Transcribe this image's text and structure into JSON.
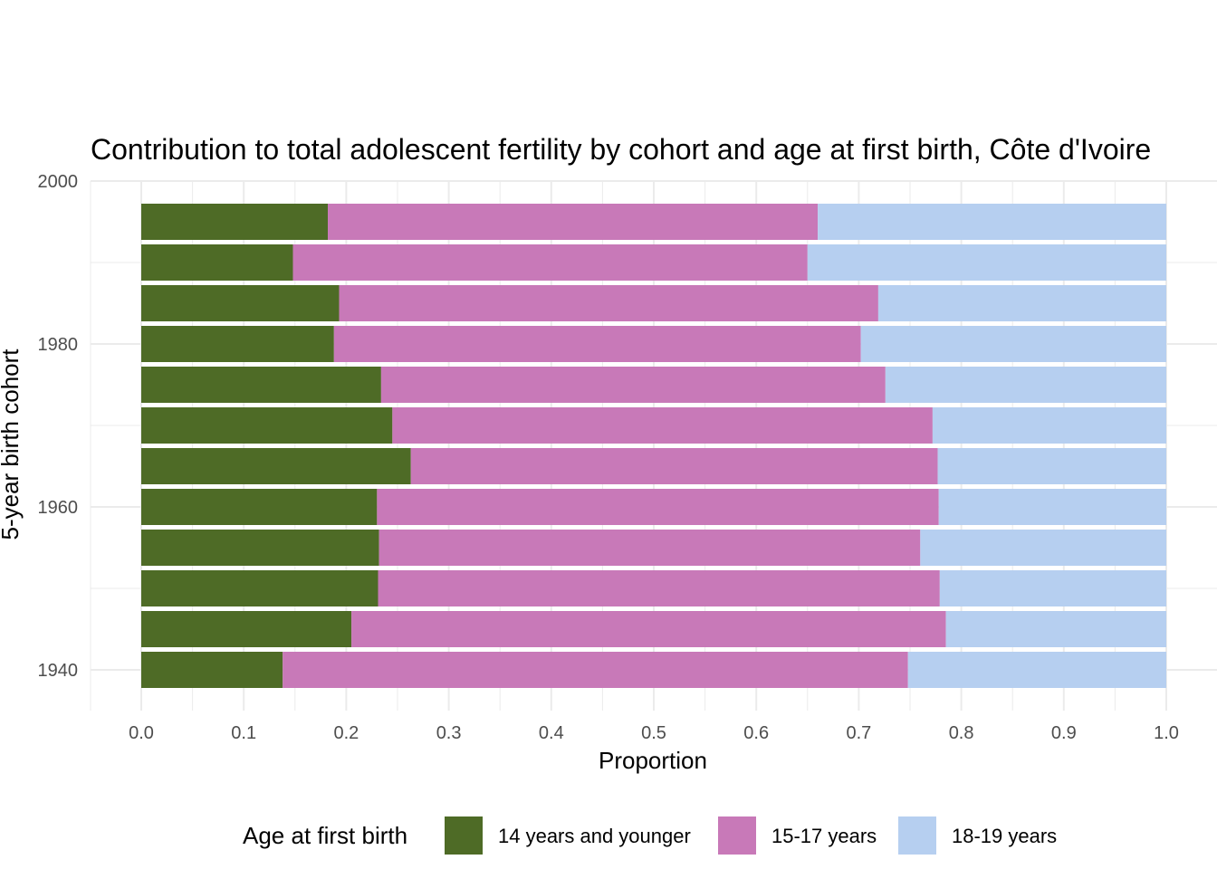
{
  "chart_data": {
    "type": "bar",
    "orientation": "horizontal",
    "stacked": true,
    "title": "Contribution to total adolescent fertility by cohort and age at first birth,  Côte d'Ivoire",
    "xlabel": "Proportion",
    "ylabel": "5-year birth cohort",
    "xlim": [
      0,
      1
    ],
    "ylim": [
      1940,
      2000
    ],
    "x_ticks": [
      "0.0",
      "0.1",
      "0.2",
      "0.3",
      "0.4",
      "0.5",
      "0.6",
      "0.7",
      "0.8",
      "0.9",
      "1.0"
    ],
    "y_ticks": [
      "1940",
      "1960",
      "1980",
      "2000"
    ],
    "grid": true,
    "legend_position": "bottom",
    "legend_title": "Age at first birth",
    "cohorts": [
      1940,
      1945,
      1950,
      1955,
      1960,
      1965,
      1970,
      1975,
      1980,
      1985,
      1990,
      1995
    ],
    "series": [
      {
        "name": "14 years and younger",
        "color": "#4e6b26",
        "values": [
          0.138,
          0.205,
          0.231,
          0.232,
          0.23,
          0.263,
          0.245,
          0.234,
          0.188,
          0.193,
          0.148,
          0.182
        ]
      },
      {
        "name": "15-17 years",
        "color": "#c879b8",
        "values": [
          0.61,
          0.58,
          0.548,
          0.528,
          0.548,
          0.514,
          0.527,
          0.492,
          0.514,
          0.526,
          0.502,
          0.478
        ]
      },
      {
        "name": "18-19 years",
        "color": "#b6cff0",
        "values": [
          0.252,
          0.215,
          0.221,
          0.24,
          0.222,
          0.223,
          0.228,
          0.274,
          0.298,
          0.281,
          0.35,
          0.34
        ]
      }
    ]
  }
}
